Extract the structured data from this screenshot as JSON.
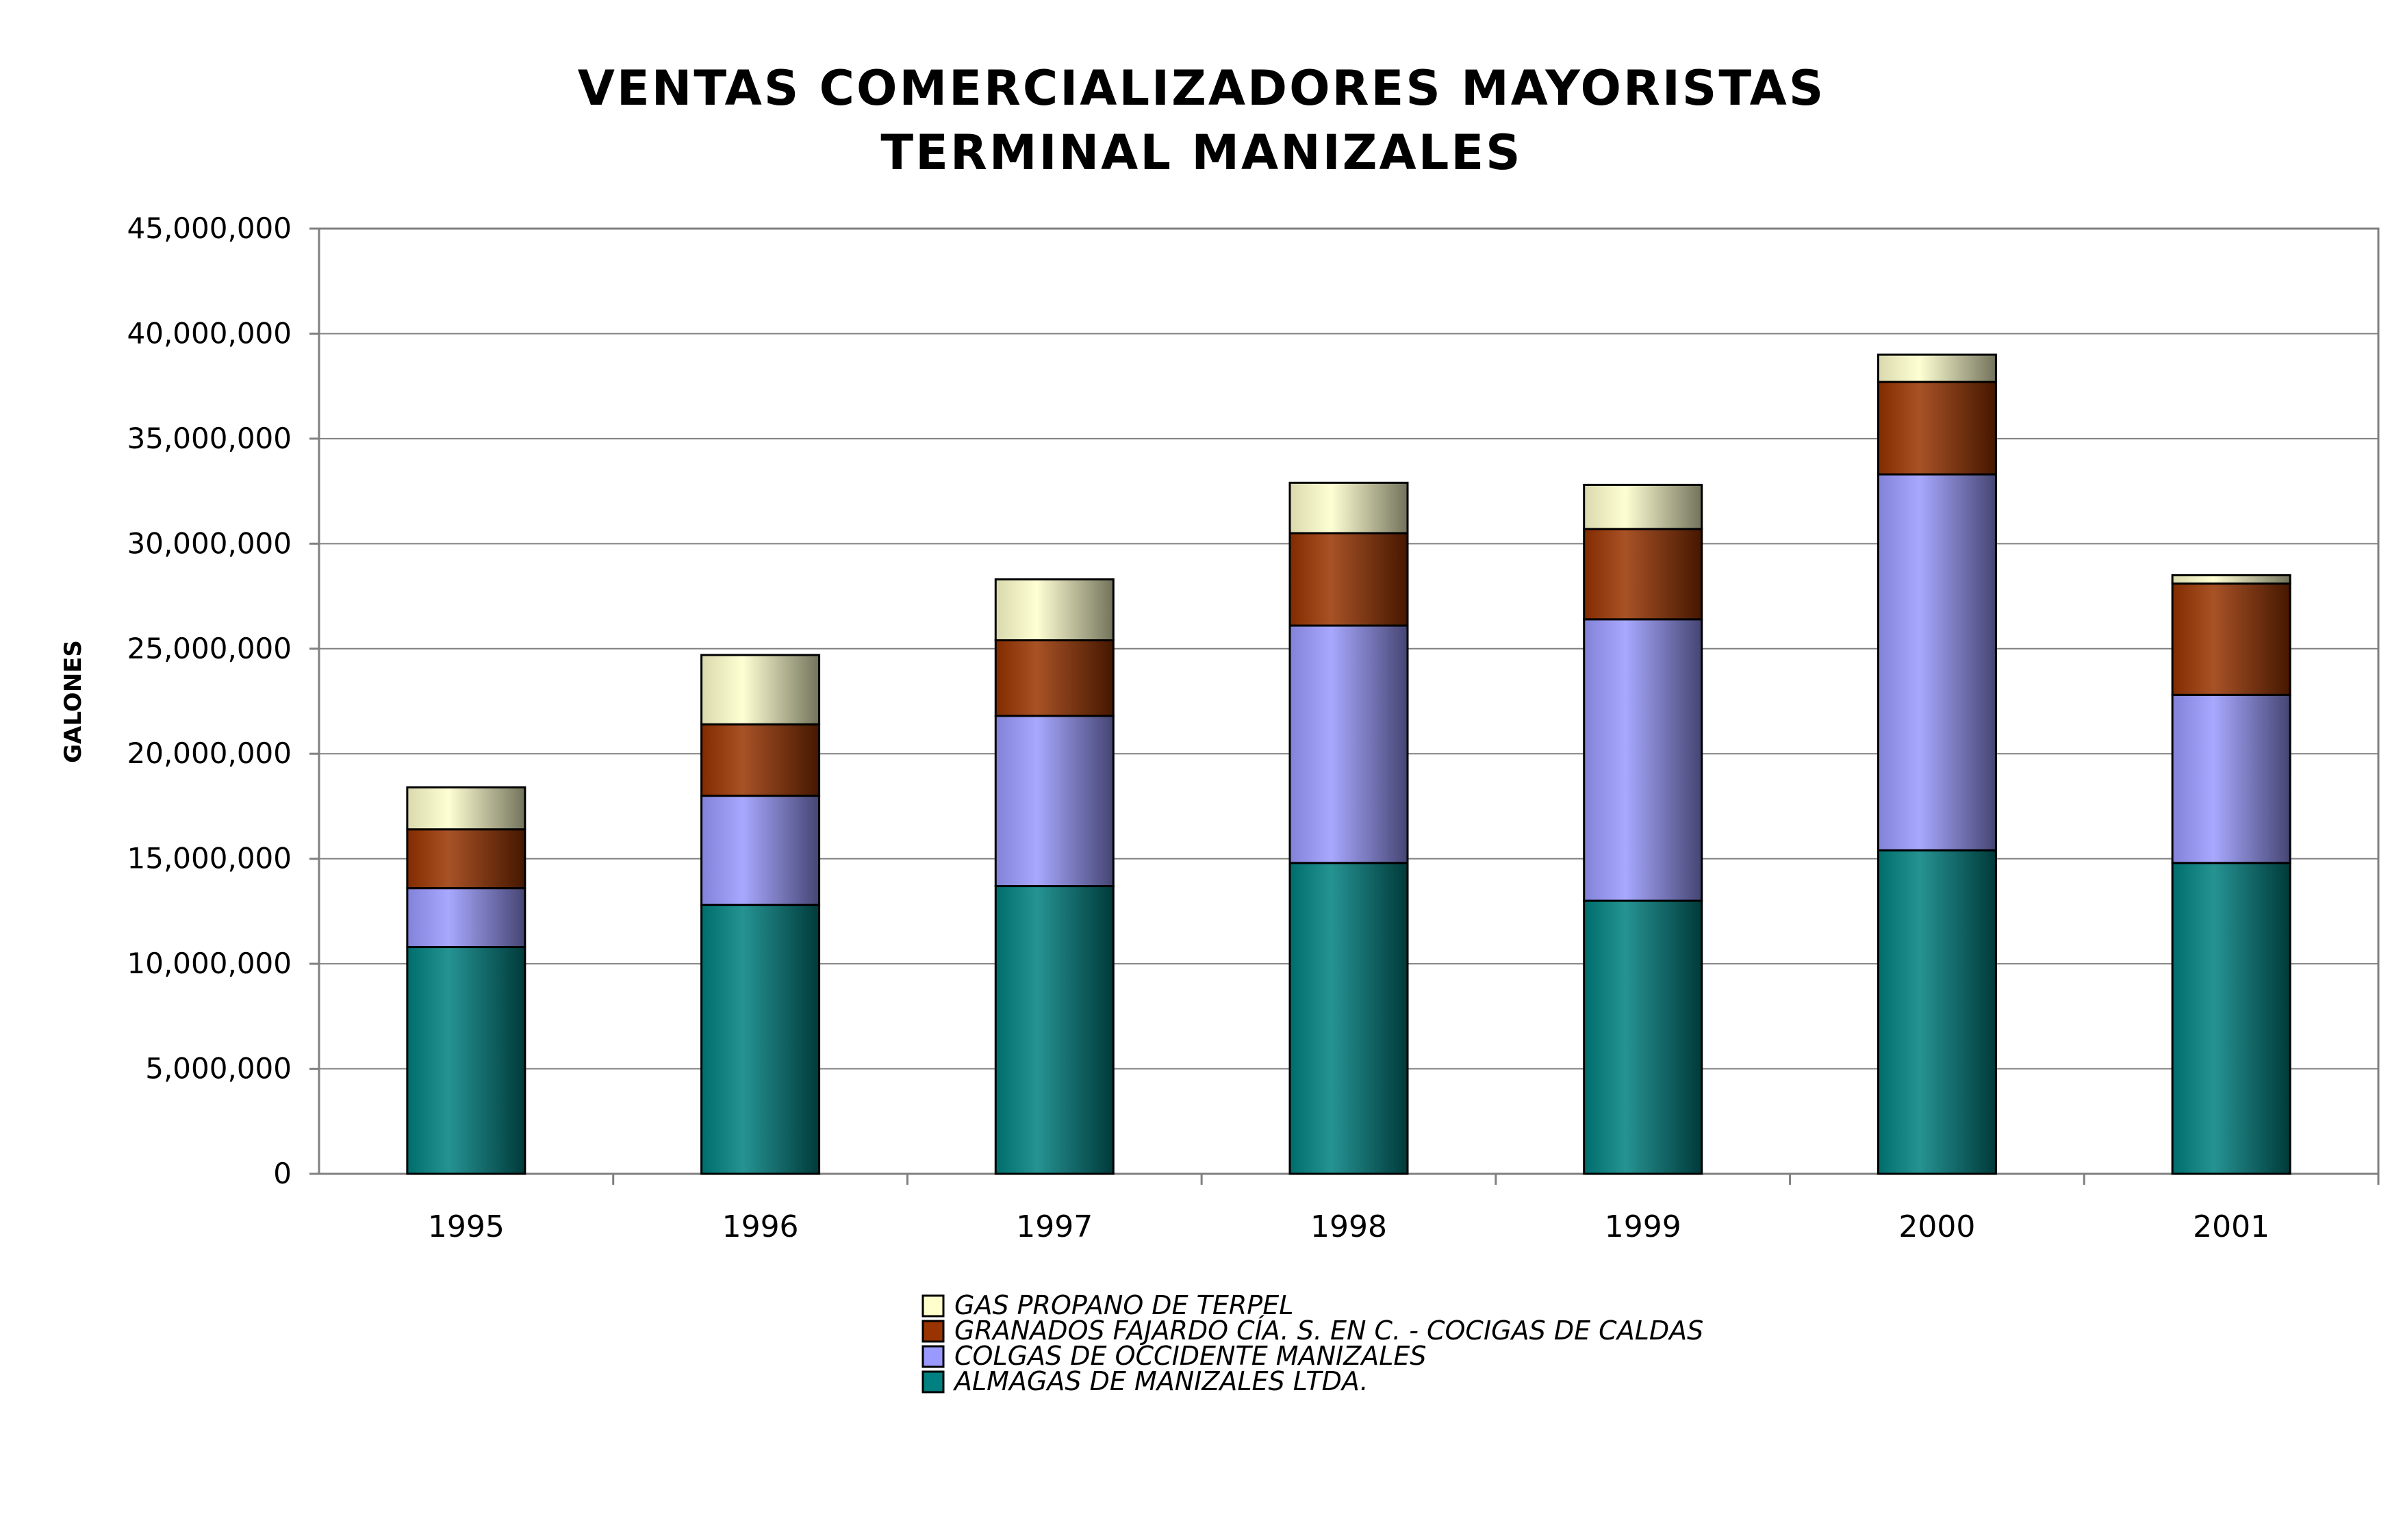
{
  "chart_data": {
    "type": "bar",
    "stacked": true,
    "title_lines": [
      "VENTAS COMERCIALIZADORES MAYORISTAS",
      "TERMINAL MANIZALES"
    ],
    "xlabel": "",
    "ylabel": "GALONES",
    "ylim": [
      0,
      45000000
    ],
    "y_ticks": [
      0,
      5000000,
      10000000,
      15000000,
      20000000,
      25000000,
      30000000,
      35000000,
      40000000,
      45000000
    ],
    "y_tick_labels": [
      "0",
      "5,000,000",
      "10,000,000",
      "15,000,000",
      "20,000,000",
      "25,000,000",
      "30,000,000",
      "35,000,000",
      "40,000,000",
      "45,000,000"
    ],
    "grid": true,
    "legend_position": "bottom-center",
    "categories": [
      "1995",
      "1996",
      "1997",
      "1998",
      "1999",
      "2000",
      "2001"
    ],
    "series": [
      {
        "name": "ALMAGAS DE MANIZALES LTDA.",
        "color": "#008080",
        "values": [
          10800000,
          12800000,
          13700000,
          14800000,
          13000000,
          15400000,
          14800000
        ]
      },
      {
        "name": "COLGAS DE OCCIDENTE MANIZALES",
        "color": "#9999ff",
        "values": [
          2800000,
          5200000,
          8100000,
          11300000,
          13400000,
          17900000,
          8000000
        ]
      },
      {
        "name": "GRANADOS FAJARDO CÍA. S. EN C. - COCIGAS DE CALDAS",
        "color": "#993300",
        "values": [
          2800000,
          3400000,
          3600000,
          4400000,
          4300000,
          4400000,
          5300000
        ]
      },
      {
        "name": "GAS PROPANO DE TERPEL",
        "color": "#ffffcc",
        "values": [
          2000000,
          3300000,
          2900000,
          2400000,
          2100000,
          1300000,
          400000
        ]
      }
    ],
    "legend_order": [
      "GAS PROPANO DE TERPEL",
      "GRANADOS FAJARDO CÍA. S. EN C. - COCIGAS DE CALDAS",
      "COLGAS DE OCCIDENTE MANIZALES",
      "ALMAGAS DE MANIZALES LTDA."
    ]
  }
}
